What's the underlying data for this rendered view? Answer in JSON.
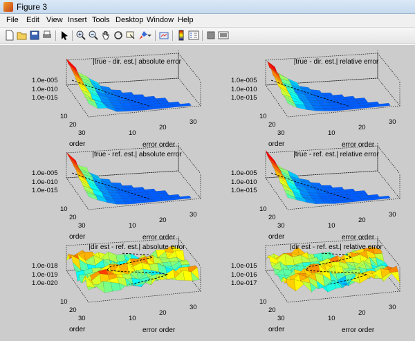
{
  "window": {
    "title": "Figure 3",
    "icon": "matlab-figure-icon"
  },
  "menu": [
    "File",
    "Edit",
    "View",
    "Insert",
    "Tools",
    "Desktop",
    "Window",
    "Help"
  ],
  "toolbar": [
    "new-figure-icon",
    "open-file-icon",
    "save-icon",
    "print-icon",
    "edit-plot-arrow-icon",
    "zoom-in-icon",
    "zoom-out-icon",
    "pan-hand-icon",
    "rotate-3d-icon",
    "data-cursor-icon",
    "brush-icon",
    "link-plot-icon",
    "insert-colorbar-icon",
    "insert-legend-icon",
    "hide-plot-tools-icon",
    "show-plot-tools-icon"
  ],
  "colors": {
    "figure_bg": "#cccccc",
    "surface_low": "#2a7bd6",
    "surface_high": "#d7191c"
  },
  "subplots": [
    {
      "title": "|true - dir. est.| absolute error",
      "ylabel": "order",
      "xlabel": "error order",
      "zticks": [
        "1.0e-005",
        "1.0e-010",
        "1.0e-015"
      ],
      "yticks": [
        "10",
        "20",
        "30"
      ],
      "xticks": [
        "10",
        "20",
        "30"
      ],
      "surface": "smooth-wedge"
    },
    {
      "title": "|true - dir. est.| relative error",
      "ylabel": "order",
      "xlabel": "error order",
      "zticks": [
        "1.0e-005",
        "1.0e-010",
        "1.0e-015"
      ],
      "yticks": [
        "10",
        "20",
        "30"
      ],
      "xticks": [
        "10",
        "20",
        "30"
      ],
      "surface": "smooth-wedge"
    },
    {
      "title": "|true - ref. est.| absolute error",
      "ylabel": "order",
      "xlabel": "error order",
      "zticks": [
        "1.0e-005",
        "1.0e-010",
        "1.0e-015"
      ],
      "yticks": [
        "10",
        "20",
        "30"
      ],
      "xticks": [
        "10",
        "20",
        "30"
      ],
      "surface": "smooth-wedge"
    },
    {
      "title": "|true - ref. est.| relative error",
      "ylabel": "order",
      "xlabel": "error order",
      "zticks": [
        "1.0e-005",
        "1.0e-010",
        "1.0e-015"
      ],
      "yticks": [
        "10",
        "20",
        "30"
      ],
      "xticks": [
        "10",
        "20",
        "30"
      ],
      "surface": "smooth-wedge"
    },
    {
      "title": "|dir est - ref. est.| absolute error",
      "ylabel": "order",
      "xlabel": "error order",
      "zticks": [
        "1.0e-018",
        "1.0e-019",
        "1.0e-020"
      ],
      "yticks": [
        "10",
        "20",
        "30"
      ],
      "xticks": [
        "10",
        "20",
        "30"
      ],
      "surface": "noisy"
    },
    {
      "title": "|dir est - ref. est.| relative error",
      "ylabel": "order",
      "xlabel": "error order",
      "zticks": [
        "1.0e-015",
        "1.0e-016",
        "1.0e-017"
      ],
      "yticks": [
        "10",
        "20",
        "30"
      ],
      "xticks": [
        "10",
        "20",
        "30"
      ],
      "surface": "noisy"
    }
  ]
}
